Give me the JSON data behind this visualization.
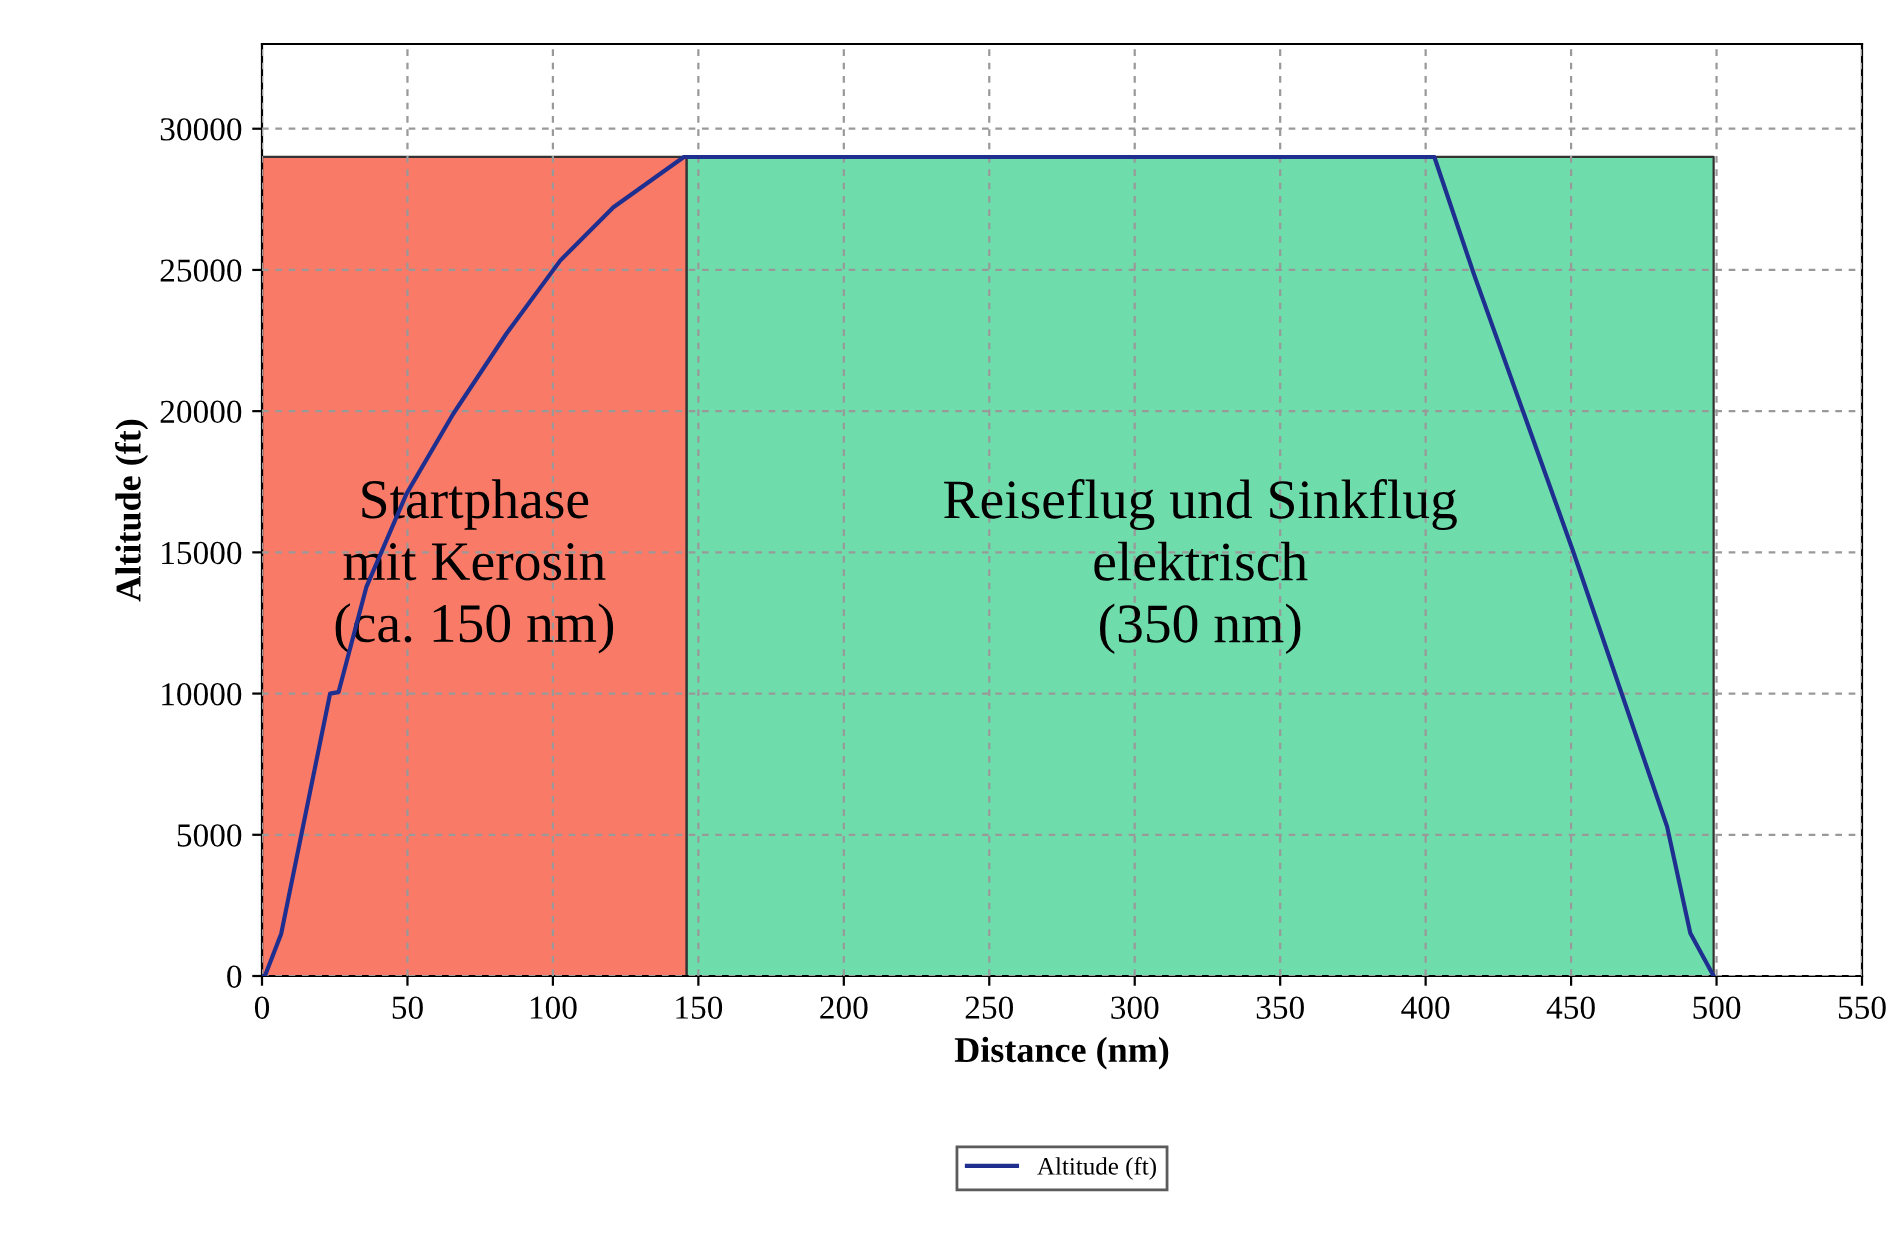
{
  "chart_data": {
    "type": "line",
    "xlabel": "Distance (nm)",
    "ylabel": "Altitude (ft)",
    "xlim": [
      0,
      550
    ],
    "ylim": [
      0,
      33000
    ],
    "xticks": [
      0,
      50,
      100,
      150,
      200,
      250,
      300,
      350,
      400,
      450,
      500,
      550
    ],
    "yticks": [
      0,
      5000,
      10000,
      15000,
      20000,
      25000,
      30000
    ],
    "grid": true,
    "legend": "bottom",
    "marker": "none",
    "line_style": "solid",
    "series": [
      {
        "name": "Altitude (ft)",
        "color": "#1f2f8f",
        "x": [
          0,
          1,
          6.6,
          23.4,
          26.3,
          35.9,
          49.7,
          65.7,
          84,
          102.5,
          120.8,
          145,
          403,
          416.5,
          450.9,
          483,
          491,
          499
        ],
        "values": [
          0,
          0,
          1500,
          10000,
          10050,
          13780,
          17080,
          19900,
          22740,
          25330,
          27220,
          29000,
          29000,
          24880,
          14980,
          5290,
          1510,
          0
        ]
      }
    ],
    "bands": [
      {
        "axis": "x",
        "from": 0,
        "to": 146,
        "color": "#fa7a68",
        "label": "Startphase\nmit Kerosin\n(ca. 150 nm)"
      },
      {
        "axis": "x",
        "from": 146,
        "to": 499,
        "color": "#6fdcac",
        "label": "Reiseflug und Sinkflug\nelektrisch\n(350 nm)"
      }
    ]
  }
}
